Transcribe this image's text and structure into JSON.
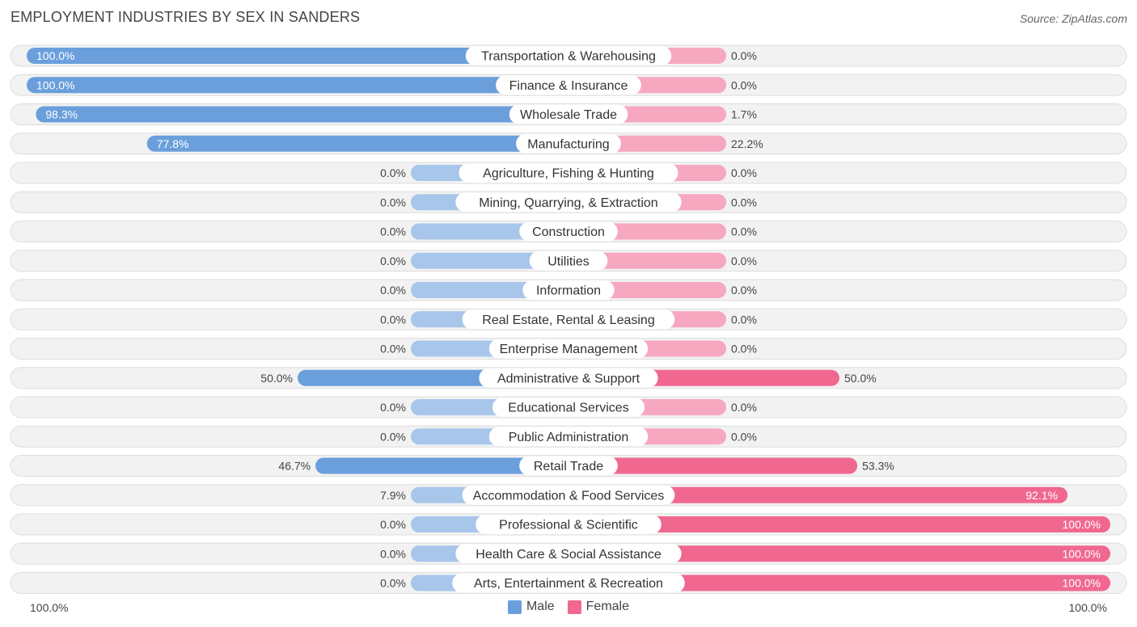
{
  "header": {
    "title": "EMPLOYMENT INDUSTRIES BY SEX IN SANDERS",
    "source": "Source: ZipAtlas.com"
  },
  "axis": {
    "left_label": "100.0%",
    "right_label": "100.0%"
  },
  "legend": {
    "male": "Male",
    "female": "Female"
  },
  "colors": {
    "male_strong": "#6a9fdc",
    "male_light": "#a8c6ea",
    "female_strong": "#f06890",
    "female_light": "#f6a8c0",
    "row_bg": "#f2f2f2",
    "row_border": "#dddddd"
  },
  "chart_data": {
    "type": "bar",
    "orientation": "horizontal-diverging",
    "title": "EMPLOYMENT INDUSTRIES BY SEX IN SANDERS",
    "xlim": [
      -100,
      100
    ],
    "categories": [
      "Transportation & Warehousing",
      "Finance & Insurance",
      "Wholesale Trade",
      "Manufacturing",
      "Agriculture, Fishing & Hunting",
      "Mining, Quarrying, & Extraction",
      "Construction",
      "Utilities",
      "Information",
      "Real Estate, Rental & Leasing",
      "Enterprise Management",
      "Administrative & Support",
      "Educational Services",
      "Public Administration",
      "Retail Trade",
      "Accommodation & Food Services",
      "Professional & Scientific",
      "Health Care & Social Assistance",
      "Arts, Entertainment & Recreation"
    ],
    "series": [
      {
        "name": "Male",
        "values": [
          100.0,
          100.0,
          98.3,
          77.8,
          0.0,
          0.0,
          0.0,
          0.0,
          0.0,
          0.0,
          0.0,
          50.0,
          0.0,
          0.0,
          46.7,
          7.9,
          0.0,
          0.0,
          0.0
        ],
        "labels": [
          "100.0%",
          "100.0%",
          "98.3%",
          "77.8%",
          "0.0%",
          "0.0%",
          "0.0%",
          "0.0%",
          "0.0%",
          "0.0%",
          "0.0%",
          "50.0%",
          "0.0%",
          "0.0%",
          "46.7%",
          "7.9%",
          "0.0%",
          "0.0%",
          "0.0%"
        ]
      },
      {
        "name": "Female",
        "values": [
          0.0,
          0.0,
          1.7,
          22.2,
          0.0,
          0.0,
          0.0,
          0.0,
          0.0,
          0.0,
          0.0,
          50.0,
          0.0,
          0.0,
          53.3,
          92.1,
          100.0,
          100.0,
          100.0
        ],
        "labels": [
          "0.0%",
          "0.0%",
          "1.7%",
          "22.2%",
          "0.0%",
          "0.0%",
          "0.0%",
          "0.0%",
          "0.0%",
          "0.0%",
          "0.0%",
          "50.0%",
          "0.0%",
          "0.0%",
          "53.3%",
          "92.1%",
          "100.0%",
          "100.0%",
          "100.0%"
        ]
      }
    ]
  }
}
